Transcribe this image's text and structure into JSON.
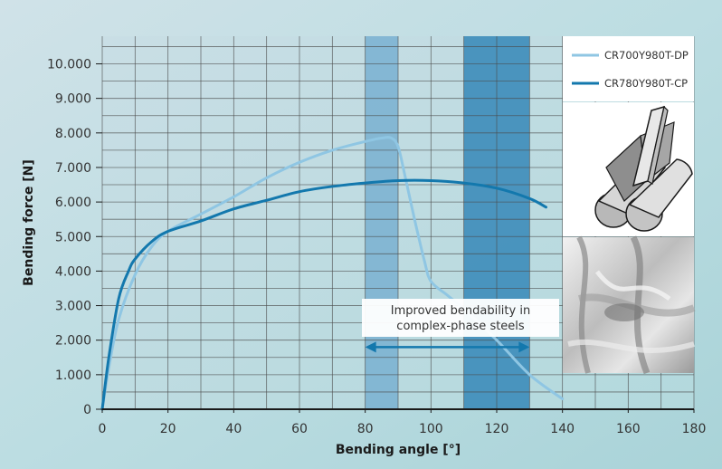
{
  "chart_data": {
    "type": "line",
    "xlabel": "Bending angle [°]",
    "ylabel": "Bending force [N]",
    "xlim": [
      0,
      180
    ],
    "ylim": [
      0,
      10800
    ],
    "x_ticks": [
      0,
      20,
      40,
      60,
      80,
      100,
      120,
      140,
      160,
      180
    ],
    "x_tick_labels": [
      "0",
      "20",
      "40",
      "60",
      "80",
      "100",
      "120",
      "140",
      "160",
      "180"
    ],
    "y_ticks": [
      0,
      1000,
      2000,
      3000,
      4000,
      5000,
      6000,
      7000,
      8000,
      9000,
      10000
    ],
    "y_tick_labels": [
      "0",
      "1.000",
      "2.000",
      "3.000",
      "4.000",
      "5.000",
      "6.000",
      "7.000",
      "8.000",
      "9.000",
      "10.000"
    ],
    "grid": true,
    "legend_position": "top-right",
    "series": [
      {
        "name": "CR700Y980T-DP",
        "color": "#8fc6e3",
        "x": [
          0,
          2,
          5,
          10,
          15,
          20,
          30,
          40,
          50,
          60,
          70,
          80,
          85,
          88,
          90,
          92,
          95,
          98,
          100,
          105,
          110,
          120,
          130,
          140
        ],
        "y": [
          0,
          1200,
          2600,
          3900,
          4700,
          5150,
          5650,
          6150,
          6700,
          7150,
          7500,
          7750,
          7850,
          7850,
          7600,
          6800,
          5500,
          4300,
          3700,
          3300,
          2900,
          2000,
          1000,
          300
        ]
      },
      {
        "name": "CR780Y980T-CP",
        "color": "#1378ad",
        "x": [
          0,
          2,
          5,
          8,
          10,
          15,
          20,
          30,
          40,
          50,
          60,
          70,
          80,
          90,
          100,
          110,
          120,
          130,
          135
        ],
        "y": [
          0,
          1500,
          3200,
          4000,
          4350,
          4850,
          5150,
          5450,
          5800,
          6050,
          6300,
          6450,
          6550,
          6620,
          6620,
          6550,
          6400,
          6100,
          5850
        ]
      }
    ],
    "shaded_regions": [
      {
        "x_range": [
          80,
          90
        ],
        "color": "#7db3d1"
      },
      {
        "x_range": [
          110,
          130
        ],
        "color": "#3d8cba"
      }
    ],
    "annotations": [
      {
        "text_lines": [
          "Improved bendability in",
          "complex-phase steels"
        ],
        "arrow_x_range": [
          80,
          130
        ],
        "arrow_y": 1800
      }
    ],
    "inset_images": [
      "three-point-bending-test-setup",
      "bent-sample-photo"
    ]
  }
}
